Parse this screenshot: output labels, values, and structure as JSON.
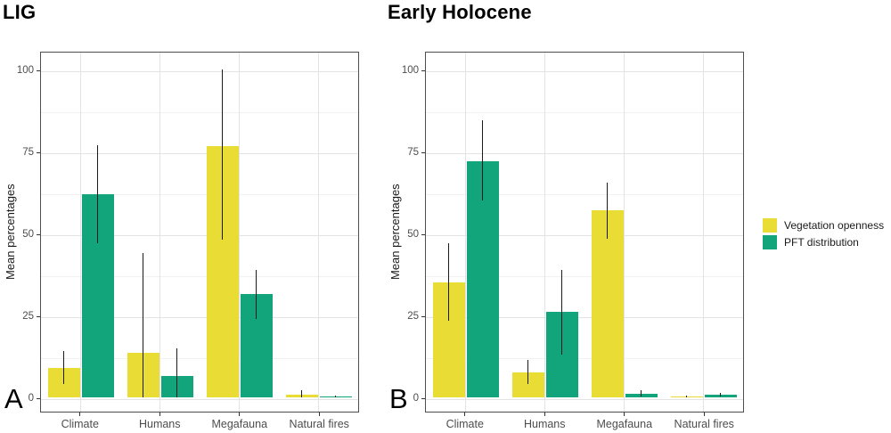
{
  "figure": {
    "legend": {
      "items": [
        {
          "label": "Vegetation openness",
          "color": "#E9DC35"
        },
        {
          "label": "PFT distribution",
          "color": "#12A57B"
        }
      ]
    }
  },
  "chart_data": [
    {
      "type": "bar",
      "title": "LIG",
      "panel_label": "A",
      "ylabel": "Mean percentages",
      "categories": [
        "Climate",
        "Humans",
        "Megafauna",
        "Natural fires"
      ],
      "series": [
        {
          "name": "Vegetation openness",
          "color": "#E9DC35",
          "values": [
            9,
            13.5,
            76.5,
            0.8
          ],
          "error_low": [
            4,
            0,
            48,
            0
          ],
          "error_high": [
            14,
            44,
            100,
            2.3
          ]
        },
        {
          "name": "PFT distribution",
          "color": "#12A57B",
          "values": [
            62,
            6.5,
            31.5,
            0.3
          ],
          "error_low": [
            47,
            0,
            24,
            0.1
          ],
          "error_high": [
            77,
            15,
            39,
            0.6
          ]
        }
      ],
      "yticks": [
        0,
        25,
        50,
        75,
        100
      ],
      "yticks_minor": [
        12.5,
        37.5,
        62.5,
        87.5
      ],
      "ylim": [
        0,
        100
      ],
      "grid": true,
      "legend_position": "right"
    },
    {
      "type": "bar",
      "title": "Early Holocene",
      "panel_label": "B",
      "ylabel": "Mean percentages",
      "categories": [
        "Climate",
        "Humans",
        "Megafauna",
        "Natural fires"
      ],
      "series": [
        {
          "name": "Vegetation openness",
          "color": "#E9DC35",
          "values": [
            35,
            7.5,
            57,
            0.2
          ],
          "error_low": [
            23.5,
            4,
            48.5,
            0
          ],
          "error_high": [
            47,
            11.5,
            65.5,
            0.5
          ]
        },
        {
          "name": "PFT distribution",
          "color": "#12A57B",
          "values": [
            72,
            26,
            1.2,
            0.8
          ],
          "error_low": [
            60,
            13,
            0.4,
            0.3
          ],
          "error_high": [
            84.5,
            39,
            2.2,
            1.4
          ]
        }
      ],
      "yticks": [
        0,
        25,
        50,
        75,
        100
      ],
      "yticks_minor": [
        12.5,
        37.5,
        62.5,
        87.5
      ],
      "ylim": [
        0,
        100
      ],
      "grid": true,
      "legend_position": "right"
    }
  ]
}
